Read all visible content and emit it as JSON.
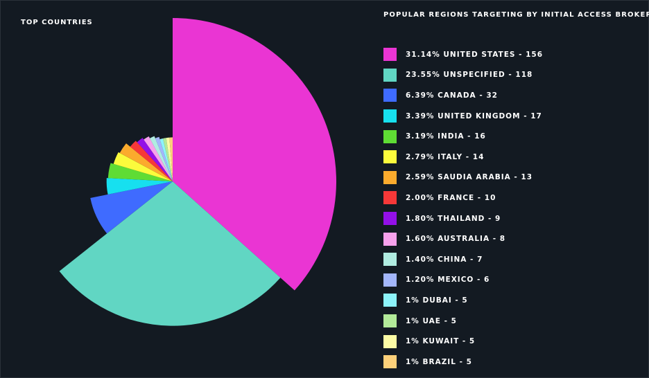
{
  "header": {
    "left_title": "TOP COUNTRIES",
    "right_title": "POPULAR REGIONS TARGETING BY INITIAL ACCESS BROKERS"
  },
  "chart_data": {
    "type": "pie",
    "style": "variable-radius",
    "title": "POPULAR REGIONS TARGETING BY INITIAL ACCESS BROKERS",
    "legend_position": "right",
    "slices": [
      {
        "label": "31.14% UNITED STATES - 156",
        "name": "UNITED STATES",
        "percent": 31.14,
        "value": 156,
        "color": "#ea35d3"
      },
      {
        "label": "23.55% UNSPECIFIED - 118",
        "name": "UNSPECIFIED",
        "percent": 23.55,
        "value": 118,
        "color": "#61d6c3"
      },
      {
        "label": "6.39% CANADA - 32",
        "name": "CANADA",
        "percent": 6.39,
        "value": 32,
        "color": "#3f6bff"
      },
      {
        "label": "3.39% UNITED KINGDOM - 17",
        "name": "UNITED KINGDOM",
        "percent": 3.39,
        "value": 17,
        "color": "#17e0ef"
      },
      {
        "label": "3.19% INDIA - 16",
        "name": "INDIA",
        "percent": 3.19,
        "value": 16,
        "color": "#5fdc34"
      },
      {
        "label": "2.79% ITALY - 14",
        "name": "ITALY",
        "percent": 2.79,
        "value": 14,
        "color": "#fbfb3c"
      },
      {
        "label": "2.59% SAUDIA ARABIA - 13",
        "name": "SAUDIA ARABIA",
        "percent": 2.59,
        "value": 13,
        "color": "#fbab2d"
      },
      {
        "label": "2.00% FRANCE - 10",
        "name": "FRANCE",
        "percent": 2.0,
        "value": 10,
        "color": "#f63838"
      },
      {
        "label": "1.80% THAILAND - 9",
        "name": "THAILAND",
        "percent": 1.8,
        "value": 9,
        "color": "#9310e8"
      },
      {
        "label": "1.60% AUSTRALIA - 8",
        "name": "AUSTRALIA",
        "percent": 1.6,
        "value": 8,
        "color": "#f7a1ec"
      },
      {
        "label": "1.40% CHINA - 7",
        "name": "CHINA",
        "percent": 1.4,
        "value": 7,
        "color": "#b0ece1"
      },
      {
        "label": "1.20% MEXICO - 6",
        "name": "MEXICO",
        "percent": 1.2,
        "value": 6,
        "color": "#a3b6fb"
      },
      {
        "label": "1% DUBAI - 5",
        "name": "DUBAI",
        "percent": 1,
        "value": 5,
        "color": "#8cf3fa"
      },
      {
        "label": "1% UAE - 5",
        "name": "UAE",
        "percent": 1,
        "value": 5,
        "color": "#b2ea99"
      },
      {
        "label": "1% KUWAIT - 5",
        "name": "KUWAIT",
        "percent": 1,
        "value": 5,
        "color": "#fcfba5"
      },
      {
        "label": "1% BRAZIL - 5",
        "name": "BRAZIL",
        "percent": 1,
        "value": 5,
        "color": "#fcd07a"
      }
    ]
  }
}
